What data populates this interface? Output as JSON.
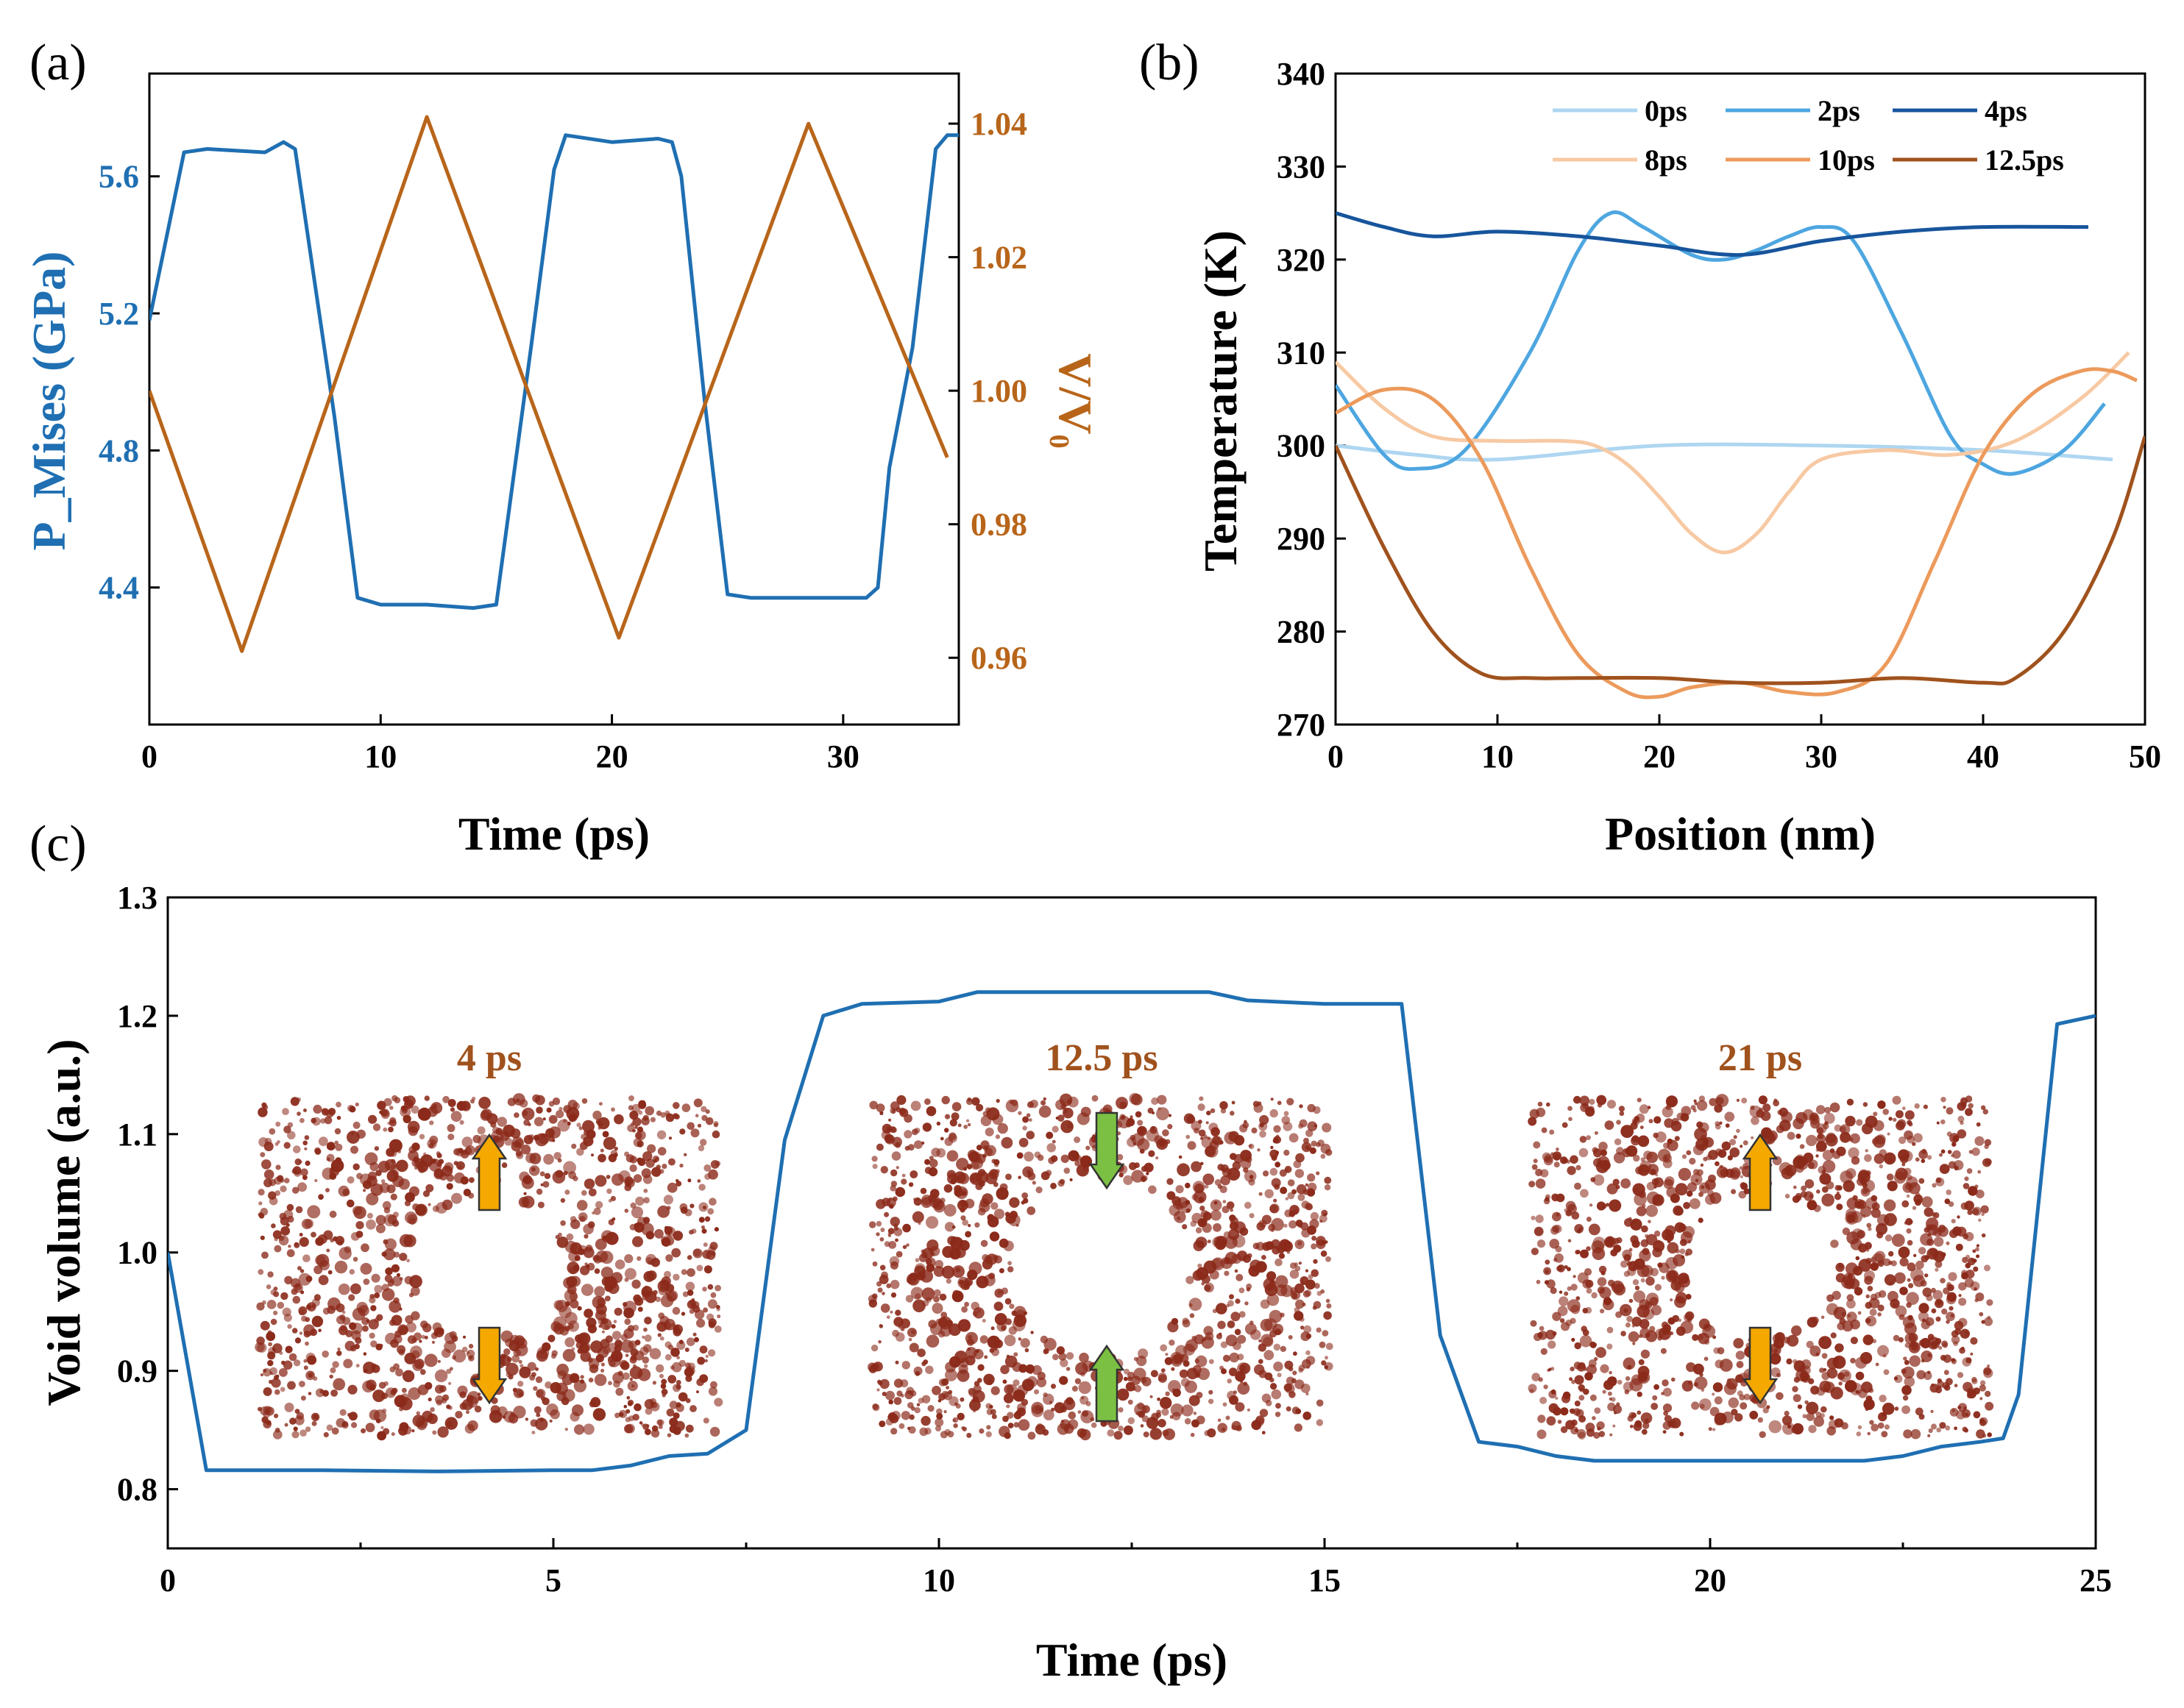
{
  "colors": {
    "blue": "#1f6fb2",
    "orange": "#b8651a",
    "axis": "#000000",
    "arrow_yellow": "#f5a800",
    "arrow_green": "#7bc043",
    "atom": "#8b2a1a"
  },
  "chart_data": [
    {
      "panel": "(a)",
      "type": "line",
      "xlabel": "Time (ps)",
      "ylabel_left": "P_Mises (GPa)",
      "ylabel_right": "V/V₀",
      "xlim": [
        0,
        35
      ],
      "ylim_left": [
        4.0,
        5.9
      ],
      "ylim_right": [
        0.95,
        1.0475
      ],
      "xticks": [
        0,
        10,
        20,
        30
      ],
      "yticks_left": [
        4.4,
        4.8,
        5.2,
        5.6
      ],
      "yticks_right": [
        0.96,
        0.98,
        1.0,
        1.02,
        1.04
      ],
      "series": [
        {
          "name": "P_Mises",
          "axis": "left",
          "color": "#1f6fb2",
          "x": [
            0,
            1.5,
            2.5,
            5,
            5.8,
            6.3,
            8,
            9,
            10,
            12,
            14,
            15,
            16.5,
            17.5,
            18,
            20,
            22,
            22.6,
            23,
            24,
            25,
            26,
            28,
            30,
            31,
            31.5,
            32,
            33,
            34,
            34.5,
            35
          ],
          "y": [
            5.18,
            5.67,
            5.68,
            5.67,
            5.7,
            5.68,
            4.9,
            4.37,
            4.35,
            4.35,
            4.34,
            4.35,
            5.1,
            5.62,
            5.72,
            5.7,
            5.71,
            5.7,
            5.6,
            4.95,
            4.38,
            4.37,
            4.37,
            4.37,
            4.37,
            4.4,
            4.75,
            5.1,
            5.68,
            5.72,
            5.72
          ]
        },
        {
          "name": "V/V0",
          "axis": "right",
          "color": "#b8651a",
          "x": [
            0,
            4,
            12,
            20.3,
            28.5,
            34.5
          ],
          "y": [
            1.0,
            0.961,
            1.041,
            0.963,
            1.04,
            0.99
          ]
        }
      ]
    },
    {
      "panel": "(b)",
      "type": "line",
      "xlabel": "Position (nm)",
      "ylabel": "Temperature (K)",
      "xlim": [
        0,
        50
      ],
      "ylim": [
        270,
        340
      ],
      "xticks": [
        0,
        10,
        20,
        30,
        40,
        50
      ],
      "yticks": [
        270,
        280,
        290,
        300,
        310,
        320,
        330,
        340
      ],
      "legend": {
        "position": "top-right",
        "columns": 3
      },
      "series": [
        {
          "name": "0ps",
          "color": "#aed6f1",
          "x": [
            0,
            5,
            10,
            20,
            30,
            40,
            48
          ],
          "y": [
            300,
            299,
            298.5,
            300,
            300,
            299.5,
            298.5
          ]
        },
        {
          "name": "2ps",
          "color": "#4da6e0",
          "x": [
            0,
            3,
            5,
            8,
            12,
            15,
            17,
            19,
            22,
            24,
            26,
            28,
            30,
            32,
            35,
            38,
            40,
            42,
            45,
            47.5
          ],
          "y": [
            306.5,
            299,
            297.5,
            299.5,
            310,
            321,
            325,
            323.5,
            320.5,
            320,
            321,
            322.5,
            323.5,
            322,
            312,
            301,
            298,
            297,
            299.5,
            304.5
          ]
        },
        {
          "name": "4ps",
          "color": "#17559c",
          "x": [
            0,
            3,
            6,
            10,
            15,
            20,
            25,
            30,
            35,
            40,
            46.5
          ],
          "y": [
            325,
            323.5,
            322.5,
            323,
            322.5,
            321.5,
            320.5,
            322,
            323,
            323.5,
            323.5
          ]
        },
        {
          "name": "8ps",
          "color": "#f7c9a3",
          "x": [
            0,
            3,
            6,
            10,
            14,
            16,
            18,
            20,
            22,
            24,
            26,
            28,
            30,
            34,
            38,
            42,
            46,
            49
          ],
          "y": [
            309,
            304,
            301,
            300.5,
            300.5,
            300,
            298,
            294.5,
            290.5,
            288.5,
            290.5,
            295,
            298.5,
            299.5,
            299,
            300.5,
            305,
            310
          ]
        },
        {
          "name": "10ps",
          "color": "#ec9a5c",
          "x": [
            0,
            3,
            6,
            9,
            12,
            15,
            18,
            20,
            22,
            25,
            28,
            31,
            34,
            37,
            40,
            43,
            46,
            48,
            49.5
          ],
          "y": [
            303.5,
            306,
            305,
            298.5,
            287,
            277.5,
            273.5,
            273,
            274,
            274.5,
            273.5,
            273.5,
            276.5,
            287.5,
            299,
            305.5,
            308,
            308,
            307
          ]
        },
        {
          "name": "12.5ps",
          "color": "#a0521d",
          "x": [
            0,
            3,
            6,
            9,
            12,
            15,
            20,
            25,
            30,
            35,
            40,
            42,
            45,
            48,
            50
          ],
          "y": [
            300,
            289,
            280,
            275.5,
            275,
            275,
            275,
            274.5,
            274.5,
            275,
            274.5,
            275,
            280,
            290,
            301
          ]
        }
      ]
    },
    {
      "panel": "(c)",
      "type": "line",
      "xlabel": "Time (ps)",
      "ylabel": "Void volume (a.u.)",
      "xlim": [
        0,
        25
      ],
      "ylim": [
        0.75,
        1.3
      ],
      "xticks": [
        0,
        5,
        10,
        15,
        20,
        25
      ],
      "yticks": [
        0.8,
        0.9,
        1.0,
        1.1,
        1.2,
        1.3
      ],
      "series": [
        {
          "name": "Void volume",
          "color": "#1f6fb2",
          "x": [
            0,
            0.5,
            2,
            3.5,
            5,
            5.5,
            6,
            6.5,
            7,
            7.5,
            8,
            8.5,
            9,
            10,
            10.5,
            12,
            13,
            13.5,
            14,
            15,
            16,
            16.5,
            17,
            17.5,
            18,
            18.5,
            20,
            22,
            22.5,
            23,
            23.5,
            23.8,
            24,
            24.5,
            25
          ],
          "y": [
            1.0,
            0.816,
            0.816,
            0.815,
            0.816,
            0.816,
            0.82,
            0.828,
            0.83,
            0.85,
            1.095,
            1.2,
            1.21,
            1.212,
            1.22,
            1.22,
            1.22,
            1.22,
            1.213,
            1.21,
            1.21,
            0.93,
            0.84,
            0.836,
            0.828,
            0.824,
            0.824,
            0.824,
            0.828,
            0.836,
            0.84,
            0.843,
            0.88,
            1.193,
            1.2
          ]
        }
      ],
      "insets": [
        {
          "label": "4 ps",
          "arrows": "outward",
          "arrow_color": "yellow"
        },
        {
          "label": "12.5 ps",
          "arrows": "inward",
          "arrow_color": "green"
        },
        {
          "label": "21 ps",
          "arrows": "outward",
          "arrow_color": "yellow"
        }
      ]
    }
  ]
}
